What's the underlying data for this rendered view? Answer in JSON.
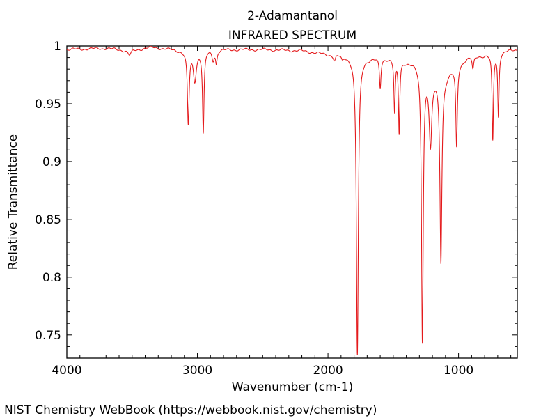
{
  "chart_data": {
    "type": "line",
    "title": "2-Adamantanol",
    "subtitle": "INFRARED SPECTRUM",
    "xlabel": "Wavenumber (cm-1)",
    "ylabel": "Relative Transmittance",
    "xlim": [
      4000,
      550
    ],
    "ylim": [
      0.73,
      1.0
    ],
    "xticks": [
      {
        "value": 4000,
        "label": "4000"
      },
      {
        "value": 3000,
        "label": "3000"
      },
      {
        "value": 2000,
        "label": "2000"
      },
      {
        "value": 1000,
        "label": "1000"
      }
    ],
    "yticks": [
      {
        "value": 1.0,
        "label": "1"
      },
      {
        "value": 0.95,
        "label": "0.95"
      },
      {
        "value": 0.9,
        "label": "0.9"
      },
      {
        "value": 0.85,
        "label": "0.85"
      },
      {
        "value": 0.8,
        "label": "0.8"
      },
      {
        "value": 0.75,
        "label": "0.75"
      }
    ],
    "grid": false,
    "series": [
      {
        "name": "2-Adamantanol IR spectrum",
        "color": "#e41a1c",
        "baseline": [
          [
            4000,
            0.997
          ],
          [
            3700,
            0.998
          ],
          [
            3520,
            0.996
          ],
          [
            3350,
            0.999
          ],
          [
            3100,
            0.996
          ],
          [
            2800,
            0.997
          ],
          [
            2500,
            0.997
          ],
          [
            2200,
            0.996
          ],
          [
            2000,
            0.993
          ],
          [
            1900,
            0.993
          ],
          [
            1750,
            0.99
          ],
          [
            1700,
            0.99
          ],
          [
            1650,
            0.99
          ],
          [
            1500,
            0.99
          ],
          [
            1400,
            0.987
          ],
          [
            1300,
            0.985
          ],
          [
            1200,
            0.975
          ],
          [
            1100,
            0.975
          ],
          [
            1000,
            0.985
          ],
          [
            900,
            0.992
          ],
          [
            800,
            0.992
          ],
          [
            700,
            0.995
          ],
          [
            550,
            0.997
          ]
        ],
        "peaks": [
          {
            "x": 3520,
            "depth": 0.004,
            "width": 15
          },
          {
            "x": 3070,
            "depth": 0.063,
            "width": 8
          },
          {
            "x": 3020,
            "depth": 0.025,
            "width": 14
          },
          {
            "x": 2955,
            "depth": 0.071,
            "width": 7
          },
          {
            "x": 2880,
            "depth": 0.008,
            "width": 10
          },
          {
            "x": 2855,
            "depth": 0.011,
            "width": 7
          },
          {
            "x": 1950,
            "depth": 0.005,
            "width": 10
          },
          {
            "x": 1890,
            "depth": 0.004,
            "width": 10
          },
          {
            "x": 1775,
            "depth": 0.258,
            "width": 9
          },
          {
            "x": 1600,
            "depth": 0.026,
            "width": 7
          },
          {
            "x": 1490,
            "depth": 0.046,
            "width": 6
          },
          {
            "x": 1455,
            "depth": 0.063,
            "width": 6
          },
          {
            "x": 1277,
            "depth": 0.236,
            "width": 8
          },
          {
            "x": 1215,
            "depth": 0.06,
            "width": 12
          },
          {
            "x": 1135,
            "depth": 0.16,
            "width": 9
          },
          {
            "x": 1015,
            "depth": 0.07,
            "width": 7
          },
          {
            "x": 890,
            "depth": 0.012,
            "width": 8
          },
          {
            "x": 738,
            "depth": 0.075,
            "width": 6
          },
          {
            "x": 695,
            "depth": 0.055,
            "width": 6
          }
        ]
      }
    ]
  },
  "footer": {
    "source": "NIST Chemistry WebBook (https://webbook.nist.gov/chemistry)"
  }
}
